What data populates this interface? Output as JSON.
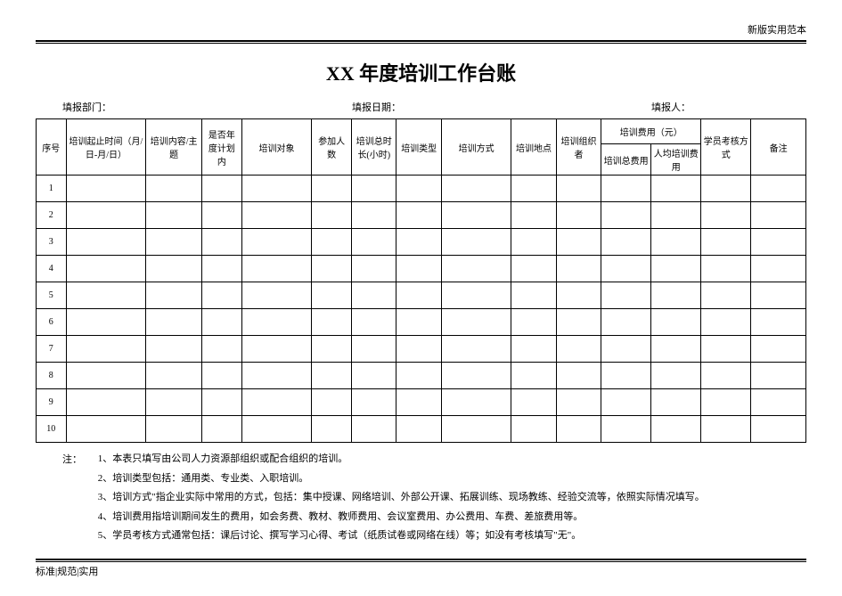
{
  "header_tag": "新版实用范本",
  "footer_tag": "标准|规范|实用",
  "title": "XX 年度培训工作台账",
  "meta": {
    "dept_label": "填报部门：",
    "date_label": "填报日期：",
    "person_label": "填报人："
  },
  "columns": {
    "seq": "序号",
    "time": "培训起止时间（月/日-月/日）",
    "content": "培训内容/主题",
    "plan": "是否年度计划内",
    "target": "培训对象",
    "people": "参加人数",
    "hours": "培训总时长(小时)",
    "type": "培训类型",
    "method": "培训方式",
    "location": "培训地点",
    "organizer": "培训组织者",
    "cost_group": "培训费用（元）",
    "cost_total": "培训总费用",
    "cost_per": "人均培训费用",
    "exam": "学员考核方式",
    "remark": "备注"
  },
  "rows": [
    "1",
    "2",
    "3",
    "4",
    "5",
    "6",
    "7",
    "8",
    "9",
    "10"
  ],
  "notes_label": "注：",
  "notes": [
    "1、本表只填写由公司人力资源部组织或配合组织的培训。",
    "2、培训类型包括：通用类、专业类、入职培训。",
    "3、培训方式\"指企业实际中常用的方式，包括：集中授课、网络培训、外部公开课、拓展训练、现场教练、经验交流等，依照实际情况填写。",
    "4、培训费用指培训期间发生的费用，如会务费、教材、教师费用、会议室费用、办公费用、车费、差旅费用等。",
    "5、学员考核方式通常包括：课后讨论、撰写学习心得、考试（纸质试卷或网络在线）等；如没有考核填写\"无\"。"
  ]
}
